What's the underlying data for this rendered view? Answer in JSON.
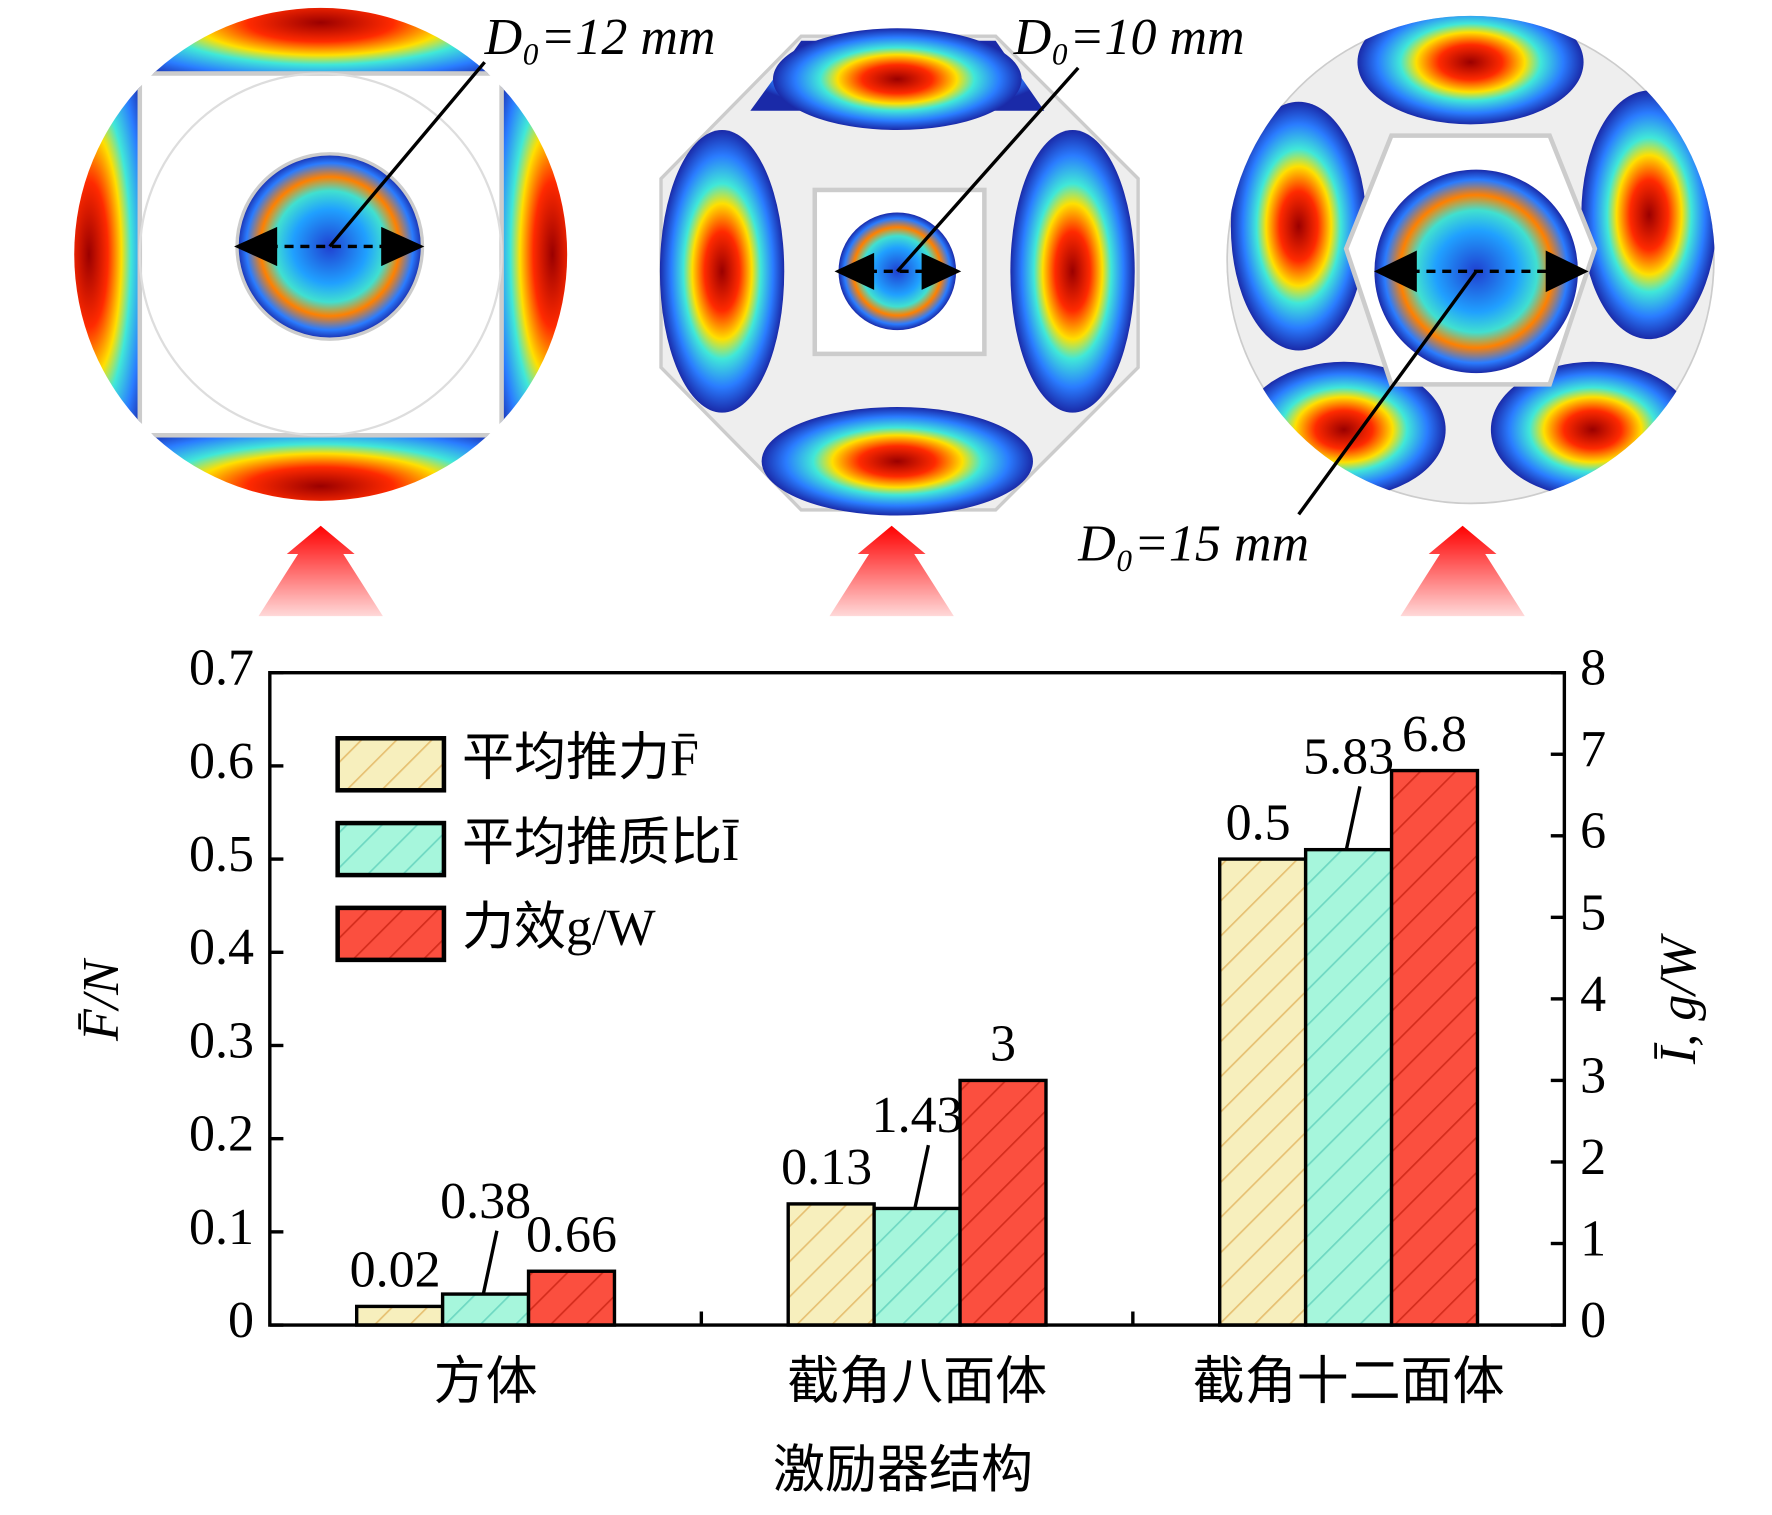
{
  "chart_data": {
    "type": "bar",
    "annotations": [
      "D₀=12 mm",
      "D₀=10 mm",
      "D₀=15 mm"
    ],
    "x_label": "激励器结构",
    "y_label": "F̄/N",
    "y2_label": "Ī, g/W",
    "categories": [
      "方体",
      "截角八面体",
      "截角十二面体"
    ],
    "series": [
      {
        "name": "平均推力F̄",
        "color": "#f7efbd",
        "hatch": "#e6c072",
        "values": [
          0.02,
          0.13,
          0.5
        ]
      },
      {
        "name": "平均推质比Ī",
        "color": "#a6f6dc",
        "hatch": "#6ed8c2",
        "axis": "y2",
        "values": [
          0.38,
          1.43,
          5.83
        ]
      },
      {
        "name": "力效g/W",
        "color": "#fb4f3f",
        "hatch": "#d42c1c",
        "axis": "y2",
        "values": [
          0.66,
          3,
          6.8
        ]
      }
    ],
    "ylim": [
      0,
      0.7
    ],
    "yticks": [
      0,
      0.1,
      0.2,
      0.3,
      0.4,
      0.5,
      0.6,
      0.7
    ],
    "y2lim": [
      0,
      8
    ],
    "y2ticks": [
      0,
      1,
      2,
      3,
      4,
      5,
      6,
      7,
      8
    ],
    "legend": "upper left"
  }
}
